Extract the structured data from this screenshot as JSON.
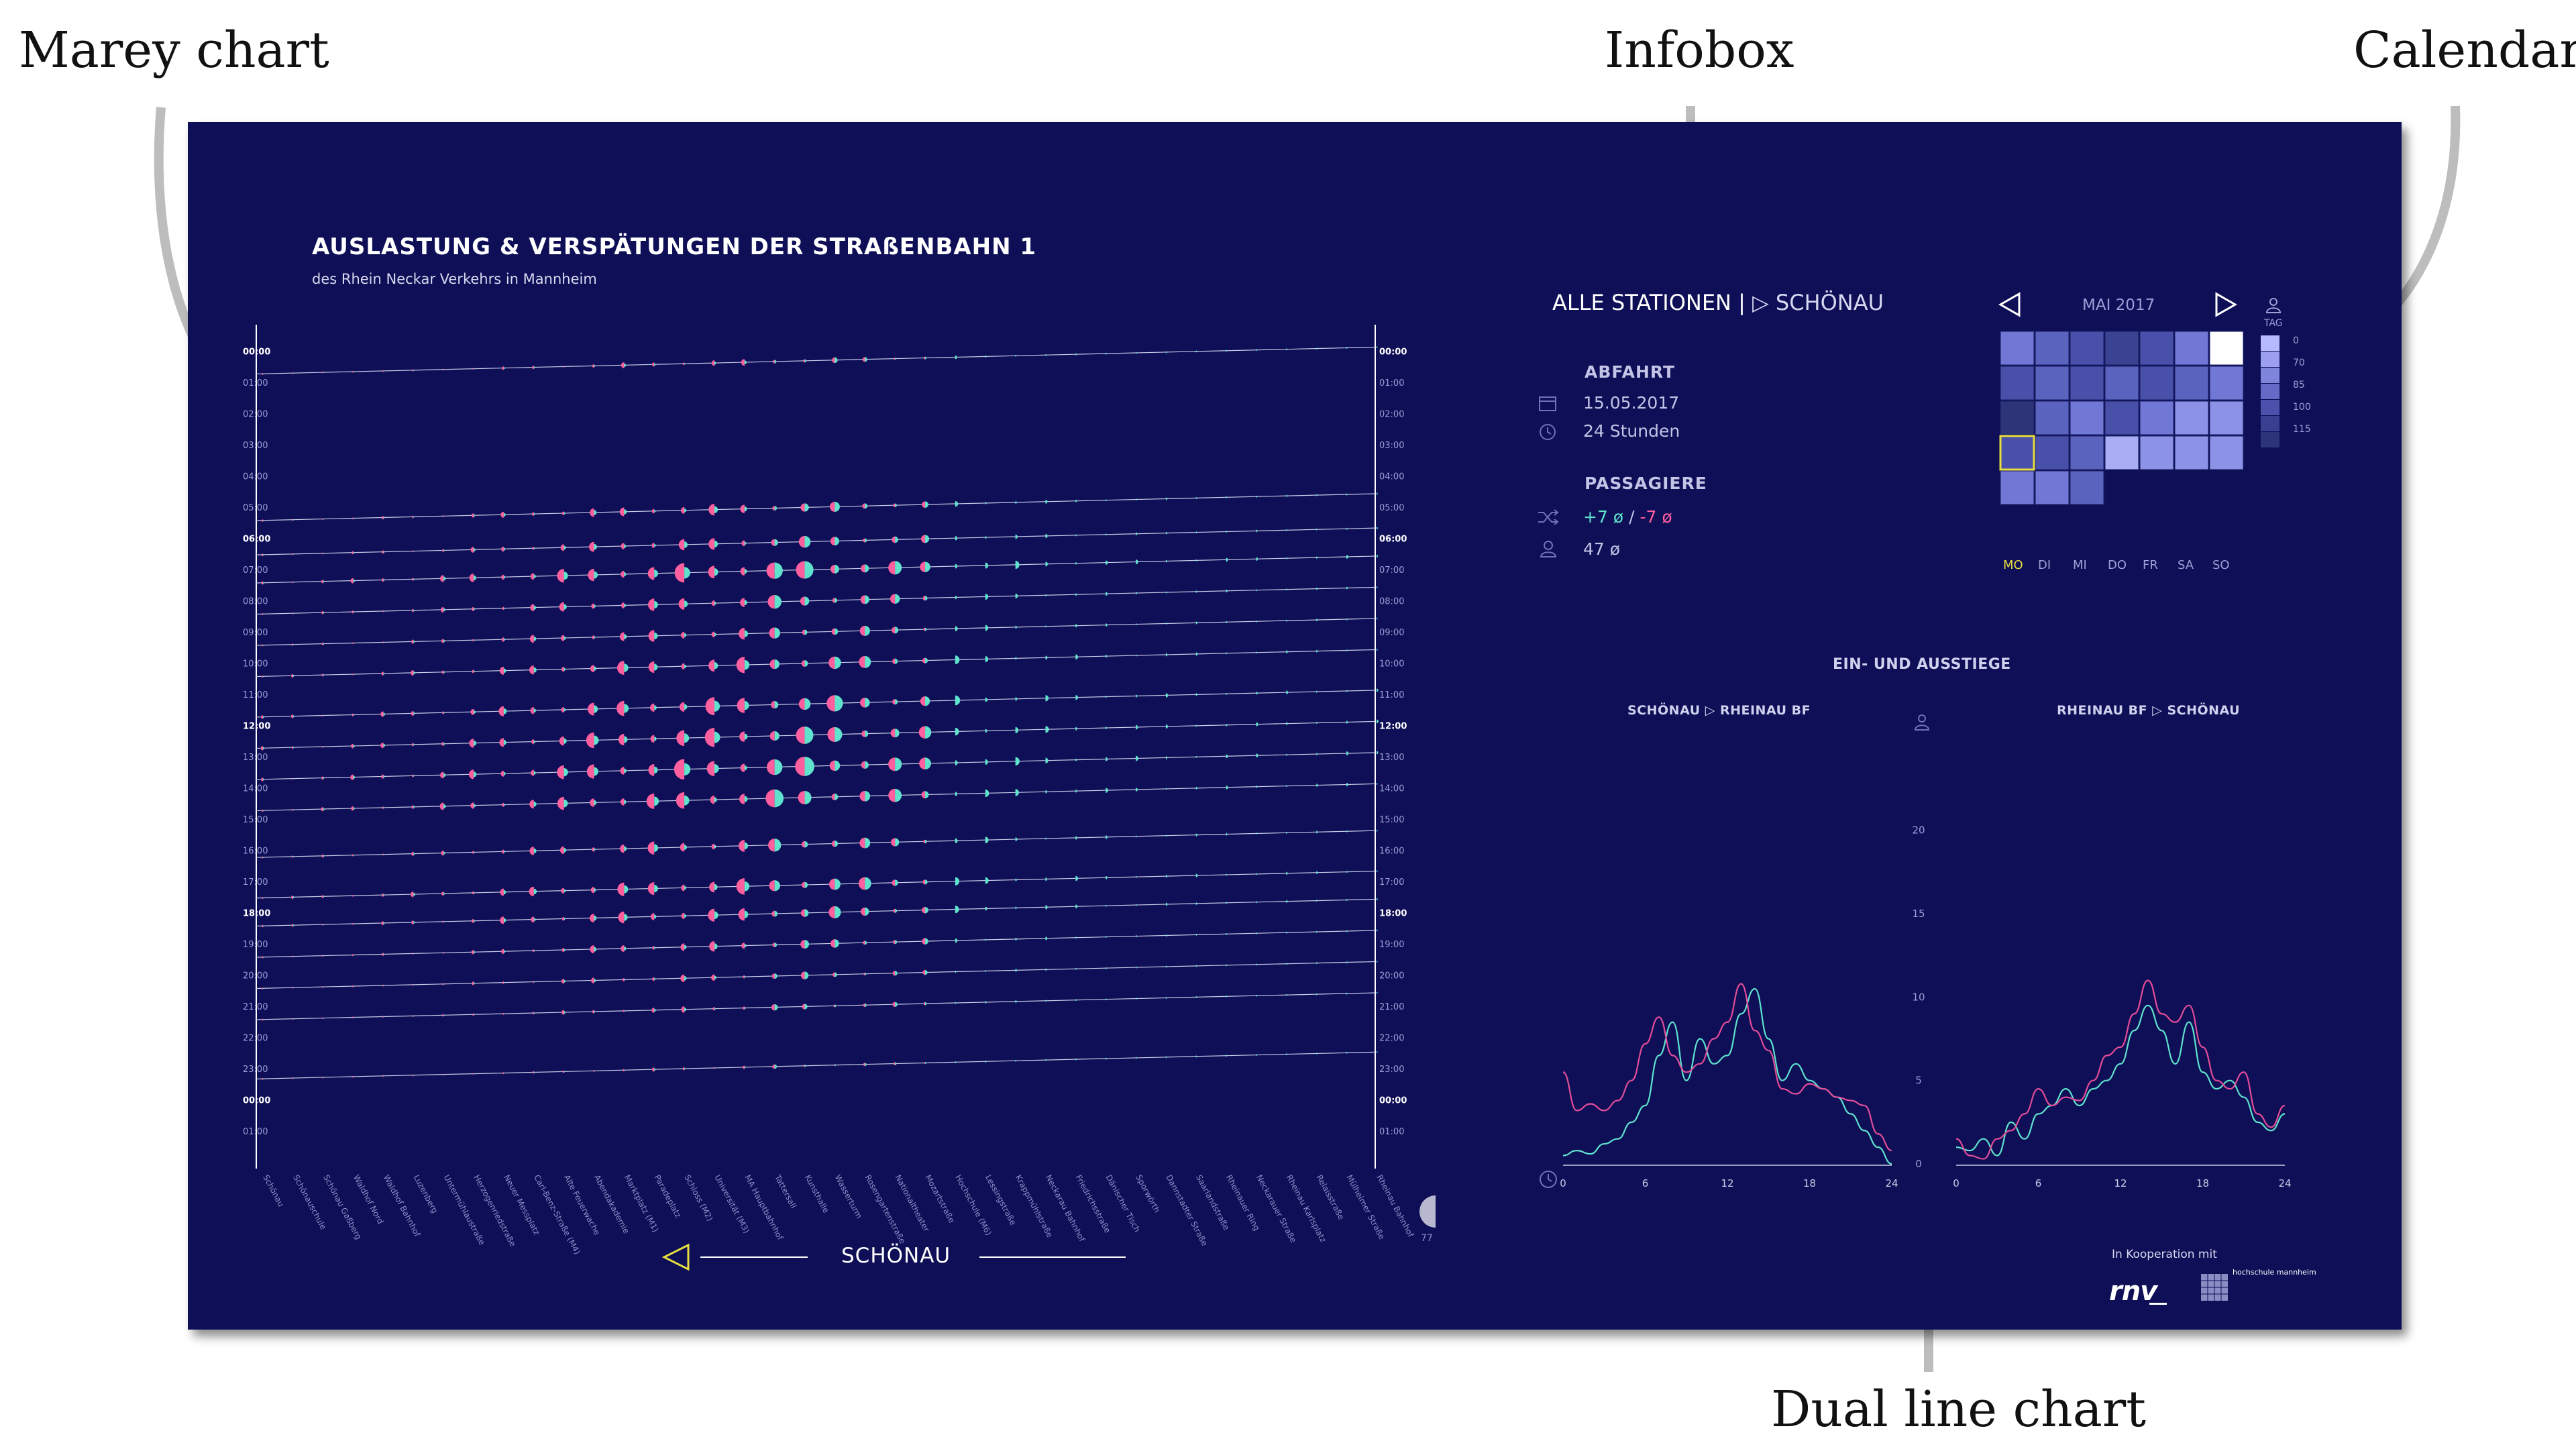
{
  "callouts": {
    "marey": "Marey chart",
    "infobox": "Infobox",
    "calendar": "Calendar",
    "dual": "Dual line chart"
  },
  "header": {
    "title": "AUSLASTUNG & VERSPÄTUNGEN DER STRAßENBAHN 1",
    "subtitle": "des Rhein Neckar Verkehrs in Mannheim"
  },
  "marey": {
    "time_labels": [
      "00:00",
      "01:00",
      "02:00",
      "03:00",
      "04:00",
      "05:00",
      "06:00",
      "07:00",
      "08:00",
      "09:00",
      "10:00",
      "11:00",
      "12:00",
      "13:00",
      "14:00",
      "15:00",
      "16:00",
      "17:00",
      "18:00",
      "19:00",
      "20:00",
      "21:00",
      "22:00",
      "23:00",
      "00:00",
      "01:00"
    ],
    "bold_times": [
      "00:00",
      "06:00",
      "12:00",
      "18:00"
    ],
    "stations": [
      "Schönau",
      "Schönauschule",
      "Schönau Gaßberg",
      "Waldhof Nord",
      "Waldhof Bahnhof",
      "Luzenberg",
      "Untermühlaustraße",
      "Herzogenriedstraße",
      "Neuer Messplatz",
      "Carl-Benz-Straße (M4)",
      "Alte Feuerwache",
      "Abendakademie",
      "Marktplatz (M1)",
      "Paradeplatz",
      "Schloss (M2)",
      "Universität (M3)",
      "MA Hauptbahnhof",
      "Tattersall",
      "Kunsthalle",
      "Wasserturm",
      "Rosengartenstraße",
      "Nationaltheater",
      "Mozartstraße",
      "Hochschule (M6)",
      "Lessingstraße",
      "Krappmühlstraße",
      "Neckarau Bahnhof",
      "Friedrichsstraße",
      "Dänischer Tisch",
      "Sporwörth",
      "Dannstadter Straße",
      "Saarlandstraße",
      "Rheinauer Ring",
      "Neckarauer Straße",
      "Rheinau Karlsplatz",
      "Relaisstraße",
      "Mülheimer Straße",
      "Rheinau Bahnhof"
    ],
    "scroll_hint": "77",
    "nav_label": "SCHÖNAU"
  },
  "infobox": {
    "stations_all": "ALLE STATIONEN",
    "separator": "|",
    "direction_arrow": "▷",
    "direction": "SCHÖNAU",
    "abfahrt_title": "ABFAHRT",
    "date": "15.05.2017",
    "duration": "24 Stunden",
    "passagiere_title": "PASSAGIERE",
    "delta_plus": "+7 ø",
    "delta_sep": "/",
    "delta_minus": "-7 ø",
    "avg": "47 ø",
    "icons": [
      "calendar-icon",
      "clock-icon",
      "shuffle-icon",
      "person-icon"
    ]
  },
  "calendar": {
    "month": "MAI 2017",
    "prev_icon": "triangle-left-icon",
    "next_icon": "triangle-right-icon",
    "legend_title": "TAG",
    "legend_values": [
      "0",
      "70",
      "85",
      "100",
      "115"
    ],
    "legend_colors": [
      "#b7b9ff",
      "#9c9fef",
      "#8085dc",
      "#6669c6",
      "#4d51ac",
      "#3a3f92",
      "#2e3479"
    ],
    "weekdays": [
      "MO",
      "DI",
      "MI",
      "DO",
      "FR",
      "SA",
      "SO"
    ],
    "active_weekday": "MO",
    "cells": [
      [
        4,
        3,
        2,
        1,
        2,
        4,
        7
      ],
      [
        2,
        3,
        2,
        3,
        2,
        3,
        4
      ],
      [
        0,
        3,
        4,
        2,
        4,
        5,
        5
      ],
      [
        2,
        2,
        3,
        6,
        5,
        5,
        5
      ],
      [
        4,
        4,
        3
      ]
    ],
    "selected_cell": [
      3,
      0
    ],
    "cell_colors": [
      "#2d3478",
      "#3a4292",
      "#4950aa",
      "#5a63bd",
      "#7077d4",
      "#8c92e6",
      "#a9adf3",
      "#ffffff"
    ]
  },
  "dual": {
    "title": "EIN- UND AUSSTIEGE",
    "left_label": "SCHÖNAU ▷ RHEINAU BF",
    "right_label": "RHEINAU BF ▷ SCHÖNAU",
    "colors": {
      "ein": "#5fe3cd",
      "aus": "#e44d98"
    }
  },
  "chart_data": [
    {
      "type": "line",
      "title": "SCHÖNAU ▷ RHEINAU BF",
      "x_ticks": [
        0,
        6,
        12,
        18,
        24
      ],
      "y_ticks": [
        0,
        5,
        10,
        15,
        20
      ],
      "xlim": [
        0,
        24
      ],
      "ylim": [
        0,
        22
      ],
      "series": [
        {
          "name": "Einstiege",
          "x": [
            0,
            1,
            2,
            3,
            4,
            5,
            6,
            7,
            8,
            9,
            10,
            11,
            12,
            13,
            14,
            15,
            16,
            17,
            18,
            19,
            20,
            21,
            22,
            23,
            24
          ],
          "values": [
            0.5,
            0.8,
            0.6,
            1.2,
            1.5,
            2.5,
            3.5,
            6.5,
            8.5,
            5,
            7.5,
            6,
            6.5,
            9,
            10.5,
            7.5,
            5,
            6,
            5,
            4.5,
            4,
            3,
            2,
            1,
            0
          ]
        },
        {
          "name": "Ausstiege",
          "x": [
            0,
            1,
            2,
            3,
            4,
            5,
            6,
            7,
            8,
            9,
            10,
            11,
            12,
            13,
            14,
            15,
            16,
            17,
            18,
            19,
            20,
            21,
            22,
            23,
            24
          ],
          "values": [
            5.5,
            3.2,
            3.6,
            3.2,
            3.8,
            5,
            7.2,
            8.8,
            6.5,
            5.5,
            6,
            7.5,
            8.5,
            10.8,
            8,
            6.8,
            4.5,
            4.2,
            4.8,
            4.5,
            4,
            3.8,
            3.5,
            1.8,
            0.8
          ]
        }
      ]
    },
    {
      "type": "line",
      "title": "RHEINAU BF ▷ SCHÖNAU",
      "x_ticks": [
        0,
        6,
        12,
        18,
        24
      ],
      "y_ticks": [
        0,
        5,
        10,
        15,
        20
      ],
      "xlim": [
        0,
        24
      ],
      "ylim": [
        0,
        22
      ],
      "series": [
        {
          "name": "Einstiege",
          "x": [
            0,
            1,
            2,
            3,
            4,
            5,
            6,
            7,
            8,
            9,
            10,
            11,
            12,
            13,
            14,
            15,
            16,
            17,
            18,
            19,
            20,
            21,
            22,
            23,
            24
          ],
          "values": [
            1,
            0.8,
            1.5,
            0.5,
            2.5,
            1.5,
            3,
            3.5,
            4.5,
            3.5,
            4.5,
            5,
            6,
            8,
            9.5,
            8,
            6,
            8.5,
            5.5,
            4.5,
            5,
            4,
            2.5,
            2,
            3
          ]
        },
        {
          "name": "Ausstiege",
          "x": [
            0,
            1,
            2,
            3,
            4,
            5,
            6,
            7,
            8,
            9,
            10,
            11,
            12,
            13,
            14,
            15,
            16,
            17,
            18,
            19,
            20,
            21,
            22,
            23,
            24
          ],
          "values": [
            1.5,
            0.5,
            0.3,
            1.5,
            2,
            3,
            4.5,
            3.5,
            4,
            3.8,
            5,
            6.5,
            7,
            9,
            11,
            9,
            8.5,
            9.5,
            7,
            5,
            4.5,
            5.5,
            3,
            2.2,
            3.5
          ]
        }
      ]
    }
  ],
  "cooperation": {
    "text": "In Kooperation mit",
    "logo_rnv": "rnv",
    "logo_hs": "hochschule mannheim"
  }
}
